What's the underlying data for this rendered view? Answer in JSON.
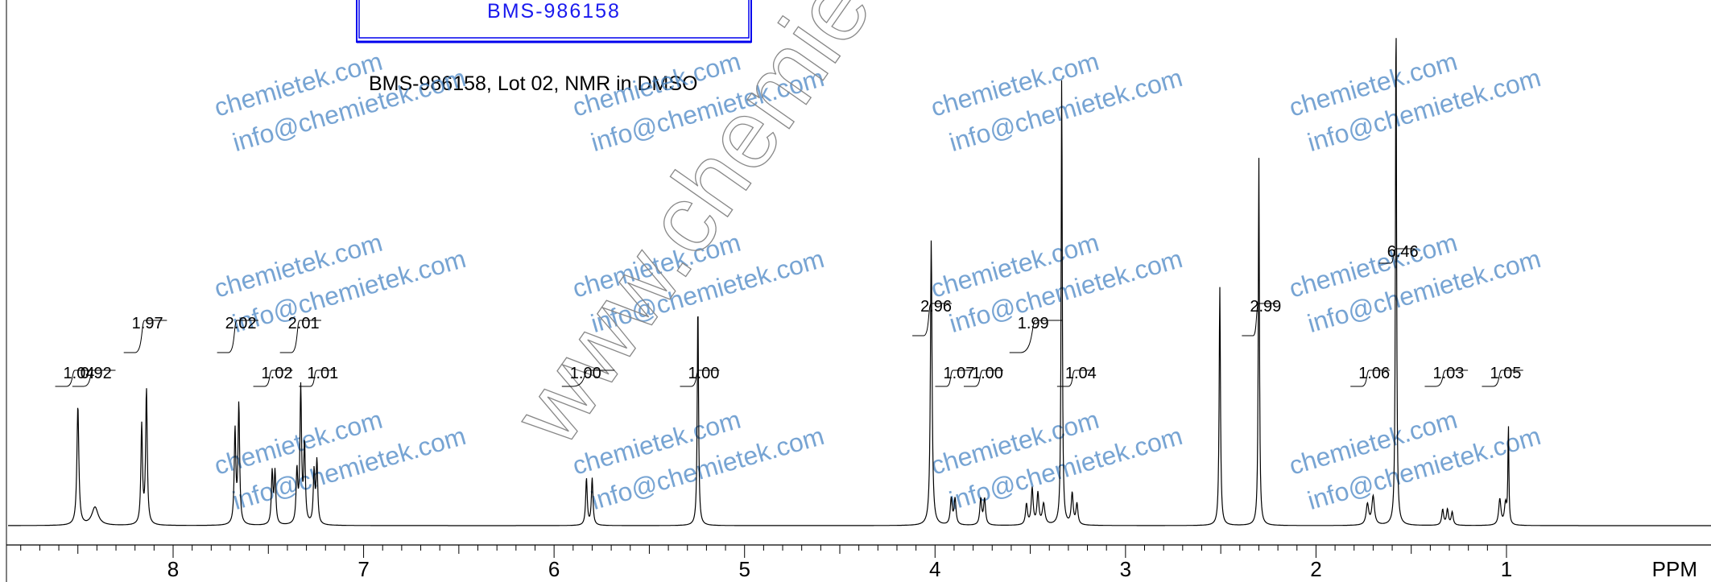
{
  "structure_box": {
    "label": "BMS-986158"
  },
  "subtitle": "BMS-986158, Lot 02, NMR in DMSO",
  "watermarks": {
    "domain": "chemietek.com",
    "email": "info@chemietek.com",
    "url": "www.chemietek.com",
    "color": "#4a86c5"
  },
  "chart_data": {
    "type": "line",
    "title": "",
    "xlabel": "PPM",
    "ylabel": "",
    "xlim": [
      9.85,
      0.9
    ],
    "ylim": [
      0,
      1.0
    ],
    "x_reversed": true,
    "grid": false,
    "line_color": "#000000",
    "x_ticks": [
      8,
      7,
      6,
      5,
      4,
      3,
      2,
      1
    ],
    "peaks": [
      {
        "ppm": 8.5,
        "height": 0.23,
        "width": 0.006
      },
      {
        "ppm": 8.41,
        "height": 0.035,
        "width": 0.02
      },
      {
        "ppm": 8.165,
        "height": 0.19,
        "width": 0.005
      },
      {
        "ppm": 8.14,
        "height": 0.26,
        "width": 0.005
      },
      {
        "ppm": 7.675,
        "height": 0.18,
        "width": 0.005
      },
      {
        "ppm": 7.655,
        "height": 0.23,
        "width": 0.005
      },
      {
        "ppm": 7.48,
        "height": 0.1,
        "width": 0.005
      },
      {
        "ppm": 7.465,
        "height": 0.1,
        "width": 0.005
      },
      {
        "ppm": 7.35,
        "height": 0.1,
        "width": 0.005
      },
      {
        "ppm": 7.33,
        "height": 0.26,
        "width": 0.005
      },
      {
        "ppm": 7.31,
        "height": 0.15,
        "width": 0.005
      },
      {
        "ppm": 7.26,
        "height": 0.1,
        "width": 0.005
      },
      {
        "ppm": 7.245,
        "height": 0.12,
        "width": 0.005
      },
      {
        "ppm": 5.83,
        "height": 0.09,
        "width": 0.005
      },
      {
        "ppm": 5.8,
        "height": 0.09,
        "width": 0.005
      },
      {
        "ppm": 5.245,
        "height": 0.43,
        "width": 0.004
      },
      {
        "ppm": 4.02,
        "height": 0.55,
        "width": 0.005
      },
      {
        "ppm": 3.915,
        "height": 0.05,
        "width": 0.006
      },
      {
        "ppm": 3.895,
        "height": 0.05,
        "width": 0.006
      },
      {
        "ppm": 3.76,
        "height": 0.05,
        "width": 0.006
      },
      {
        "ppm": 3.74,
        "height": 0.05,
        "width": 0.006
      },
      {
        "ppm": 3.52,
        "height": 0.04,
        "width": 0.006
      },
      {
        "ppm": 3.49,
        "height": 0.07,
        "width": 0.006
      },
      {
        "ppm": 3.46,
        "height": 0.06,
        "width": 0.006
      },
      {
        "ppm": 3.43,
        "height": 0.04,
        "width": 0.008
      },
      {
        "ppm": 3.335,
        "height": 0.87,
        "width": 0.0035
      },
      {
        "ppm": 3.28,
        "height": 0.06,
        "width": 0.006
      },
      {
        "ppm": 3.255,
        "height": 0.04,
        "width": 0.006
      },
      {
        "ppm": 2.505,
        "height": 0.46,
        "width": 0.004
      },
      {
        "ppm": 2.3,
        "height": 0.71,
        "width": 0.0035
      },
      {
        "ppm": 1.73,
        "height": 0.04,
        "width": 0.008
      },
      {
        "ppm": 1.7,
        "height": 0.055,
        "width": 0.008
      },
      {
        "ppm": 1.58,
        "height": 1.0,
        "width": 0.0035
      },
      {
        "ppm": 1.335,
        "height": 0.03,
        "width": 0.006
      },
      {
        "ppm": 1.31,
        "height": 0.03,
        "width": 0.006
      },
      {
        "ppm": 1.285,
        "height": 0.025,
        "width": 0.006
      },
      {
        "ppm": 1.035,
        "height": 0.05,
        "width": 0.007
      },
      {
        "ppm": 1.005,
        "height": 0.04,
        "width": 0.007
      },
      {
        "ppm": 0.99,
        "height": 0.19,
        "width": 0.003
      }
    ],
    "integrals": [
      {
        "label": "1.04",
        "from": 8.56,
        "to": 8.47,
        "row": "low"
      },
      {
        "label": "0.92",
        "from": 8.47,
        "to": 8.37,
        "row": "low"
      },
      {
        "label": "1.97",
        "from": 8.2,
        "to": 8.1,
        "row": "high"
      },
      {
        "label": "2.02",
        "from": 7.71,
        "to": 7.62,
        "row": "high"
      },
      {
        "label": "1.02",
        "from": 7.52,
        "to": 7.44,
        "row": "low"
      },
      {
        "label": "2.01",
        "from": 7.38,
        "to": 7.29,
        "row": "high"
      },
      {
        "label": "1.01",
        "from": 7.28,
        "to": 7.21,
        "row": "low"
      },
      {
        "label": "1.00",
        "from": 5.9,
        "to": 5.75,
        "row": "low"
      },
      {
        "label": "1.00",
        "from": 5.28,
        "to": 5.2,
        "row": "low"
      },
      {
        "label": "2.96",
        "from": 4.06,
        "to": 3.98,
        "row": "mid"
      },
      {
        "label": "1.07",
        "from": 3.94,
        "to": 3.87,
        "row": "low"
      },
      {
        "label": "1.00",
        "from": 3.79,
        "to": 3.71,
        "row": "low"
      },
      {
        "label": "1.99",
        "from": 3.55,
        "to": 3.4,
        "row": "high"
      },
      {
        "label": "1.04",
        "from": 3.3,
        "to": 3.23,
        "row": "low"
      },
      {
        "label": "2.99",
        "from": 2.33,
        "to": 2.27,
        "row": "mid"
      },
      {
        "label": "1.06",
        "from": 1.76,
        "to": 1.68,
        "row": "low"
      },
      {
        "label": "6.46",
        "from": 1.61,
        "to": 1.55,
        "row": "top"
      },
      {
        "label": "1.03",
        "from": 1.37,
        "to": 1.27,
        "row": "low"
      },
      {
        "label": "1.05",
        "from": 1.07,
        "to": 0.98,
        "row": "low"
      }
    ]
  }
}
